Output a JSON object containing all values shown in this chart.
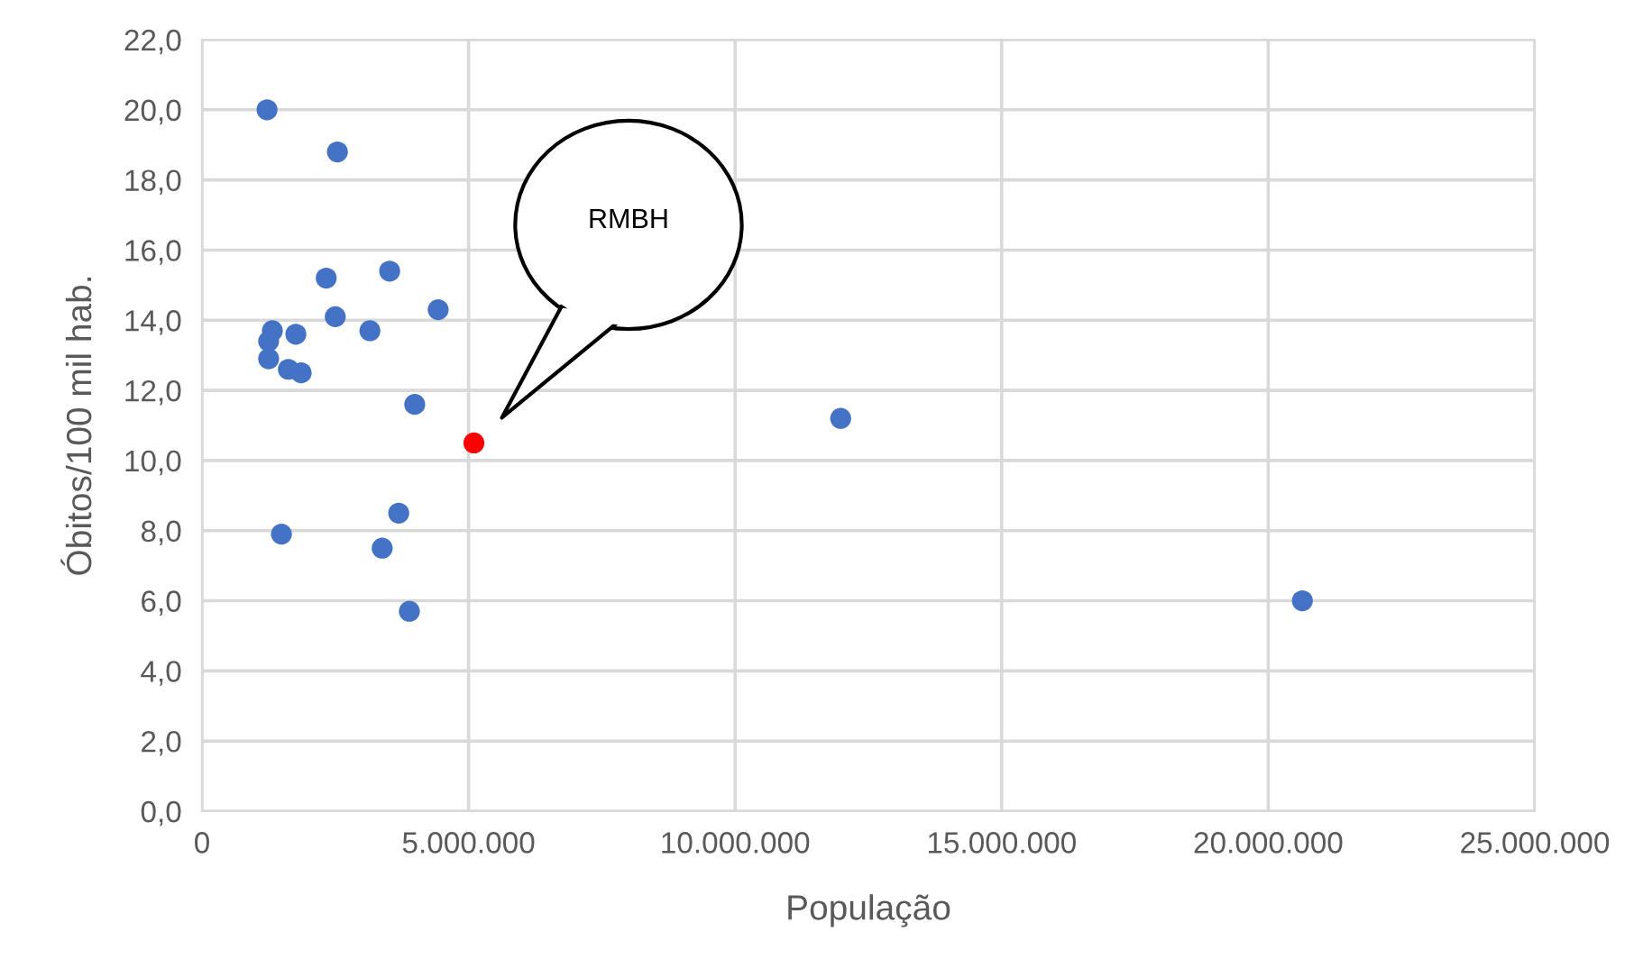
{
  "chart_data": {
    "type": "scatter",
    "xlabel": "População",
    "ylabel": "Óbitos/100 mil hab.",
    "series": [
      {
        "color": "#4472c4",
        "x": [
          1220000,
          2540000,
          2330000,
          3520000,
          4430000,
          2500000,
          3150000,
          1760000,
          1320000,
          1250000,
          1250000,
          1620000,
          1860000,
          3990000,
          11980000,
          3690000,
          1490000,
          3380000,
          3890000,
          20640000
        ],
        "values": [
          20.0,
          18.8,
          15.2,
          15.4,
          14.3,
          14.1,
          13.7,
          13.6,
          13.7,
          13.4,
          12.9,
          12.6,
          12.5,
          11.6,
          11.2,
          8.5,
          7.9,
          7.5,
          5.7,
          6.0
        ]
      },
      {
        "color": "#ff0000",
        "x": [
          5100000
        ],
        "values": [
          10.5
        ]
      }
    ],
    "annotations": [
      "RMBH"
    ],
    "marker": "circle",
    "grid": true,
    "legend": false,
    "xlim": [
      0,
      25000000
    ],
    "ylim": [
      0,
      22
    ],
    "xticks": [
      0,
      {
        "value": 5000000,
        "label": "5.000.000"
      },
      {
        "value": 10000000,
        "label": "10.000.000"
      },
      {
        "value": 15000000,
        "label": "15.000.000"
      },
      {
        "value": 20000000,
        "label": "20.000.000"
      },
      {
        "value": 25000000,
        "label": "25.000.000"
      }
    ],
    "yticks": [
      {
        "value": 0,
        "label": "0,0"
      },
      {
        "value": 2,
        "label": "2,0"
      },
      {
        "value": 4,
        "label": "4,0"
      },
      {
        "value": 6,
        "label": "6,0"
      },
      {
        "value": 8,
        "label": "8,0"
      },
      {
        "value": 10,
        "label": "10,0"
      },
      {
        "value": 12,
        "label": "12,0"
      },
      {
        "value": 14,
        "label": "14,0"
      },
      {
        "value": 16,
        "label": "16,0"
      },
      {
        "value": 18,
        "label": "18,0"
      },
      {
        "value": 20,
        "label": "20,0"
      },
      {
        "value": 22,
        "label": "22,0"
      }
    ]
  }
}
